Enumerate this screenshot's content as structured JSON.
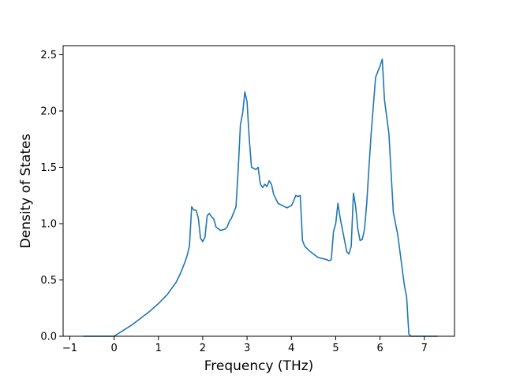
{
  "chart_data": {
    "type": "line",
    "title": "",
    "xlabel": "Frequency (THz)",
    "ylabel": "Density of States",
    "xlim": [
      -1.15,
      7.68
    ],
    "ylim": [
      0.0,
      2.58
    ],
    "xticks": [
      -1,
      0,
      1,
      2,
      3,
      4,
      5,
      6,
      7
    ],
    "xtick_labels": [
      "−1",
      "0",
      "1",
      "2",
      "3",
      "4",
      "5",
      "6",
      "7"
    ],
    "yticks": [
      0.0,
      0.5,
      1.0,
      1.5,
      2.0,
      2.5
    ],
    "ytick_labels": [
      "0.0",
      "0.5",
      "1.0",
      "1.5",
      "2.0",
      "2.5"
    ],
    "grid": false,
    "colors": {
      "line": "#1f77b4",
      "axes": "#000000",
      "background": "#ffffff"
    },
    "series": [
      {
        "x": [
          -0.7,
          -0.3,
          0.0,
          0.2,
          0.4,
          0.6,
          0.8,
          1.0,
          1.2,
          1.4,
          1.5,
          1.6,
          1.65,
          1.7,
          1.75,
          1.8,
          1.85,
          1.9,
          1.95,
          2.0,
          2.05,
          2.1,
          2.15,
          2.2,
          2.25,
          2.3,
          2.4,
          2.5,
          2.55,
          2.6,
          2.65,
          2.7,
          2.75,
          2.8,
          2.85,
          2.9,
          2.95,
          3.0,
          3.05,
          3.1,
          3.15,
          3.2,
          3.25,
          3.3,
          3.35,
          3.4,
          3.45,
          3.5,
          3.55,
          3.6,
          3.7,
          3.8,
          3.9,
          4.0,
          4.05,
          4.1,
          4.15,
          4.2,
          4.25,
          4.3,
          4.4,
          4.5,
          4.6,
          4.7,
          4.8,
          4.85,
          4.9,
          4.95,
          5.0,
          5.05,
          5.1,
          5.15,
          5.2,
          5.25,
          5.3,
          5.35,
          5.4,
          5.45,
          5.5,
          5.55,
          5.6,
          5.65,
          5.7,
          5.75,
          5.8,
          5.85,
          5.9,
          5.95,
          6.0,
          6.05,
          6.1,
          6.15,
          6.2,
          6.25,
          6.3,
          6.4,
          6.5,
          6.55,
          6.6,
          6.65,
          6.7,
          7.0,
          7.3
        ],
        "y": [
          0.0,
          0.0,
          0.0,
          0.05,
          0.1,
          0.16,
          0.22,
          0.29,
          0.37,
          0.48,
          0.56,
          0.66,
          0.72,
          0.8,
          1.15,
          1.12,
          1.12,
          1.05,
          0.87,
          0.84,
          0.88,
          1.07,
          1.09,
          1.06,
          1.04,
          0.97,
          0.94,
          0.95,
          0.97,
          1.02,
          1.05,
          1.1,
          1.15,
          1.48,
          1.88,
          1.98,
          2.17,
          2.08,
          1.75,
          1.5,
          1.49,
          1.48,
          1.5,
          1.35,
          1.32,
          1.35,
          1.33,
          1.38,
          1.35,
          1.26,
          1.18,
          1.16,
          1.14,
          1.16,
          1.2,
          1.25,
          1.24,
          1.25,
          0.85,
          0.8,
          0.76,
          0.73,
          0.7,
          0.69,
          0.68,
          0.67,
          0.68,
          0.93,
          1.0,
          1.18,
          1.05,
          0.95,
          0.85,
          0.75,
          0.73,
          0.8,
          1.27,
          1.15,
          0.95,
          0.85,
          0.86,
          0.95,
          1.18,
          1.5,
          1.8,
          2.05,
          2.3,
          2.35,
          2.4,
          2.46,
          2.1,
          1.95,
          1.8,
          1.45,
          1.1,
          0.9,
          0.6,
          0.45,
          0.35,
          0.02,
          0.0,
          0.0,
          0.0
        ]
      }
    ]
  }
}
